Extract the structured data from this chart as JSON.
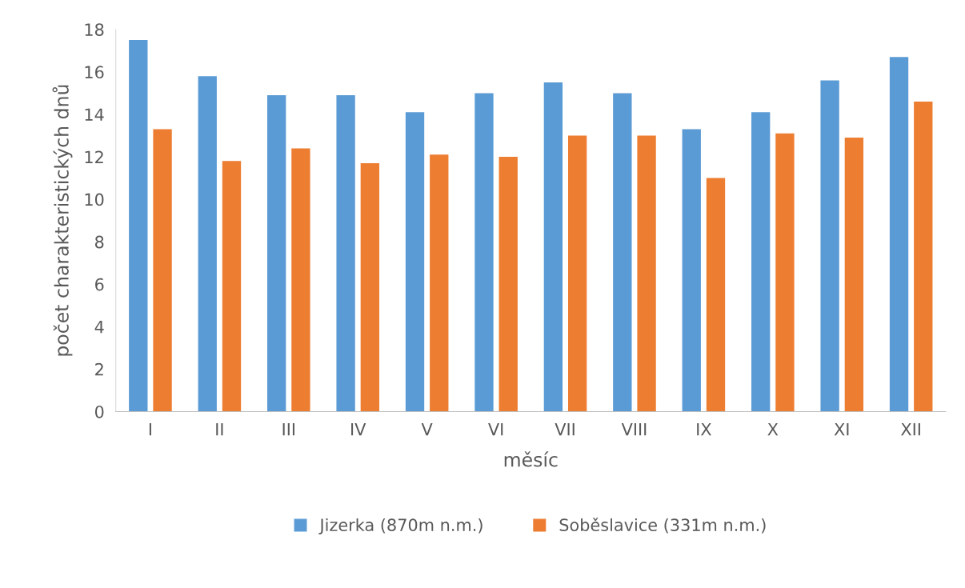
{
  "chart_data": {
    "type": "bar",
    "xlabel": "měsíc",
    "ylabel": "počet charakteristických dnů",
    "categories": [
      "I",
      "II",
      "III",
      "IV",
      "V",
      "VI",
      "VII",
      "VIII",
      "IX",
      "X",
      "XI",
      "XII"
    ],
    "series": [
      {
        "name": "Jizerka (870m n.m.)",
        "color": "#5b9bd5",
        "values": [
          17.5,
          15.8,
          14.9,
          14.9,
          14.1,
          15.0,
          15.5,
          15.0,
          13.3,
          14.1,
          15.6,
          16.7
        ]
      },
      {
        "name": "Soběslavice (331m n.m.)",
        "color": "#ed7d31",
        "values": [
          13.3,
          11.8,
          12.4,
          11.7,
          12.1,
          12.0,
          13.0,
          13.0,
          11.0,
          13.1,
          12.9,
          14.6
        ]
      }
    ],
    "ylim": [
      0,
      18
    ],
    "yticks": [
      0,
      2,
      4,
      6,
      8,
      10,
      12,
      14,
      16,
      18
    ],
    "grid": false,
    "legend": "bottom"
  }
}
